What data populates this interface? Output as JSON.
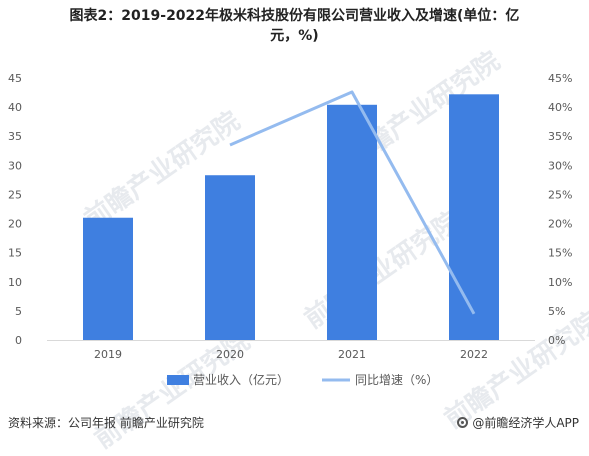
{
  "title_line1": "图表2：2019-2022年极米科技股份有限公司营业收入及增速(单位：亿",
  "title_line2": "元，%)",
  "watermark_text": "前瞻产业研究院",
  "source_text": "资料来源：公司年报 前瞻产业研究院",
  "brand_text": "@前瞻经济学人APP",
  "colors": {
    "bar": "#3f7fe0",
    "line": "#94bbef",
    "axis_text": "#595959"
  },
  "chart_data": {
    "type": "bar+line",
    "categories": [
      "2019",
      "2020",
      "2021",
      "2022"
    ],
    "series": [
      {
        "name": "营业收入（亿元）",
        "type": "bar",
        "axis": "left",
        "values": [
          21.0,
          28.3,
          40.4,
          42.2
        ]
      },
      {
        "name": "同比增速（%）",
        "type": "line",
        "axis": "right",
        "values": [
          null,
          33.5,
          42.6,
          4.5
        ]
      }
    ],
    "y_left": {
      "min": 0,
      "max": 45,
      "ticks": [
        "0",
        "5",
        "10",
        "15",
        "20",
        "25",
        "30",
        "35",
        "40",
        "45"
      ]
    },
    "y_right": {
      "min": 0,
      "max": 45,
      "ticks": [
        "0%",
        "5%",
        "10%",
        "15%",
        "20%",
        "25%",
        "30%",
        "35%",
        "40%",
        "45%"
      ]
    },
    "grid": false,
    "legend": "bottom"
  }
}
